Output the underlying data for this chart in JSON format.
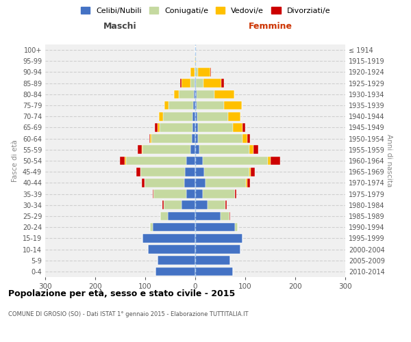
{
  "age_groups": [
    "0-4",
    "5-9",
    "10-14",
    "15-19",
    "20-24",
    "25-29",
    "30-34",
    "35-39",
    "40-44",
    "45-49",
    "50-54",
    "55-59",
    "60-64",
    "65-69",
    "70-74",
    "75-79",
    "80-84",
    "85-89",
    "90-94",
    "95-99",
    "100+"
  ],
  "birth_years": [
    "2010-2014",
    "2005-2009",
    "2000-2004",
    "1995-1999",
    "1990-1994",
    "1985-1989",
    "1980-1984",
    "1975-1979",
    "1970-1974",
    "1965-1969",
    "1960-1964",
    "1955-1959",
    "1950-1954",
    "1945-1949",
    "1940-1944",
    "1935-1939",
    "1930-1934",
    "1925-1929",
    "1920-1924",
    "1915-1919",
    "≤ 1914"
  ],
  "males": {
    "celibi": [
      80,
      75,
      95,
      105,
      85,
      55,
      28,
      18,
      22,
      20,
      18,
      10,
      7,
      6,
      5,
      4,
      3,
      2,
      0,
      0,
      0
    ],
    "coniugati": [
      0,
      0,
      0,
      0,
      5,
      15,
      35,
      65,
      80,
      90,
      120,
      95,
      80,
      65,
      60,
      50,
      30,
      8,
      2,
      0,
      0
    ],
    "vedovi": [
      0,
      0,
      0,
      0,
      0,
      0,
      0,
      0,
      0,
      0,
      3,
      2,
      3,
      5,
      8,
      8,
      10,
      18,
      8,
      2,
      0
    ],
    "divorziati": [
      0,
      0,
      0,
      0,
      0,
      0,
      3,
      2,
      5,
      8,
      10,
      8,
      2,
      5,
      0,
      0,
      0,
      2,
      0,
      0,
      0
    ]
  },
  "females": {
    "nubili": [
      75,
      70,
      90,
      95,
      80,
      50,
      25,
      15,
      20,
      18,
      15,
      8,
      6,
      5,
      4,
      3,
      3,
      2,
      0,
      0,
      0
    ],
    "coniugate": [
      0,
      0,
      0,
      0,
      5,
      18,
      35,
      65,
      82,
      90,
      130,
      100,
      88,
      70,
      62,
      55,
      35,
      15,
      5,
      0,
      0
    ],
    "vedove": [
      0,
      0,
      0,
      0,
      0,
      0,
      0,
      0,
      2,
      3,
      5,
      8,
      10,
      20,
      25,
      35,
      40,
      35,
      25,
      2,
      0
    ],
    "divorziate": [
      0,
      0,
      0,
      0,
      0,
      2,
      3,
      2,
      5,
      8,
      20,
      10,
      5,
      5,
      0,
      0,
      0,
      5,
      2,
      0,
      0
    ]
  },
  "colors": {
    "celibi": "#4472c4",
    "coniugati": "#c5d9a0",
    "vedovi": "#ffc000",
    "divorziati": "#cc0000"
  },
  "xlim": 300,
  "title": "Popolazione per età, sesso e stato civile - 2015",
  "subtitle": "COMUNE DI GROSIO (SO) - Dati ISTAT 1° gennaio 2015 - Elaborazione TUTTITALIA.IT",
  "ylabel_left": "Fasce di età",
  "ylabel_right": "Anni di nascita",
  "legend_labels": [
    "Celibi/Nubili",
    "Coniugati/e",
    "Vedovi/e",
    "Divorziati/e"
  ],
  "maschi_label": "Maschi",
  "femmine_label": "Femmine"
}
